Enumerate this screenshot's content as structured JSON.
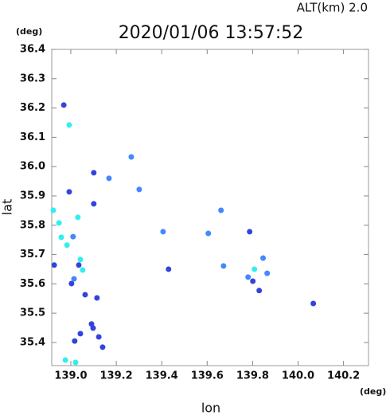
{
  "chart_data": {
    "type": "scatter",
    "title": "2020/01/06 13:57:52",
    "subtitle": "ALT(km)  2.0",
    "y_unit": "(deg)",
    "x_unit": "(deg)",
    "x_label": "lon",
    "y_label": "lat",
    "xlim": [
      138.916,
      140.31
    ],
    "ylim": [
      35.321,
      36.4
    ],
    "xticks": [
      {
        "value": 139,
        "label": "139.0"
      },
      139.2,
      139.4,
      139.6,
      139.8,
      {
        "value": 140,
        "label": "140.0"
      },
      140.2
    ],
    "yticks": [
      36.4,
      36.3,
      36.2,
      36.1,
      {
        "value": 36,
        "label": "36.0"
      },
      35.9,
      35.8,
      35.7,
      35.6,
      35.5,
      35.4
    ],
    "series": [
      {
        "color": "#3344dd",
        "x": [
          138.969,
          138.993,
          138.927,
          139.017,
          139.042,
          139.098,
          139.123,
          139.063,
          139.115,
          139.091,
          139.14,
          140.067,
          139.787,
          139.43,
          139.801,
          139.829,
          139.101,
          139.101,
          139.035,
          139.003
        ],
        "y": [
          36.21,
          35.914,
          35.664,
          35.405,
          35.43,
          35.449,
          35.419,
          35.563,
          35.552,
          35.463,
          35.384,
          35.533,
          35.778,
          35.65,
          35.609,
          35.577,
          35.873,
          35.979,
          35.664,
          35.601
        ]
      },
      {
        "color": "#33eeee",
        "x": [
          138.993,
          138.923,
          138.958,
          138.983,
          139.042,
          139.052,
          138.948,
          139.808,
          139.031,
          138.976,
          139.021
        ],
        "y": [
          36.142,
          35.851,
          35.759,
          35.732,
          35.683,
          35.647,
          35.808,
          35.65,
          35.827,
          35.34,
          35.332
        ]
      },
      {
        "color": "#4488ff",
        "x": [
          139.301,
          139.266,
          139.406,
          139.605,
          139.78,
          139.864,
          139.846,
          139.168,
          139.01,
          139.014,
          139.672,
          139.661
        ],
        "y": [
          35.922,
          36.033,
          35.778,
          35.772,
          35.623,
          35.636,
          35.688,
          35.96,
          35.761,
          35.617,
          35.661,
          35.851
        ]
      }
    ]
  }
}
